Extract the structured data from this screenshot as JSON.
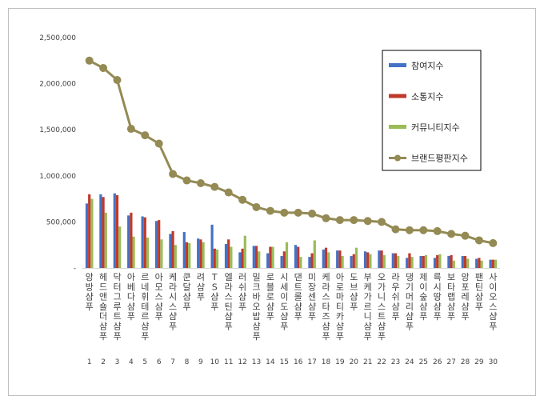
{
  "chart_data": {
    "type": "bar",
    "title": "",
    "xlabel": "",
    "ylabel": "",
    "ylim": [
      0,
      2500000
    ],
    "yticks": [
      "2,500,000",
      "2,000,000",
      "1,500,000",
      "1,000,000",
      "500,000",
      "-"
    ],
    "grid": false,
    "legend_position": "top-right",
    "ranks": [
      "1",
      "2",
      "3",
      "4",
      "5",
      "6",
      "7",
      "8",
      "9",
      "10",
      "11",
      "12",
      "13",
      "14",
      "15",
      "16",
      "17",
      "18",
      "19",
      "20",
      "21",
      "22",
      "23",
      "24",
      "25",
      "26",
      "27",
      "28",
      "29",
      "30"
    ],
    "categories": [
      "앙방샴푸",
      "헤드앤숄더샴푸",
      "닥터그루트샴푸",
      "아베다샴푸",
      "르네휘테르샴푸",
      "아모스샴푸",
      "케라시스샴푸",
      "쿤달샴푸",
      "려샴푸",
      "TS샴푸",
      "엘라스틴샴푸",
      "러쉬샴푸",
      "밀크바오밥샴푸",
      "로블로샴푸",
      "시세이도샴푸",
      "댄트롤샴푸",
      "미장센샴푸",
      "케라스타즈샴푸",
      "아로마티카샴푸",
      "도브샴푸",
      "부케가르니샴푸",
      "오가니스트샴푸",
      "라우쉬샴푸",
      "댕기머리샴푸",
      "제이숲샴푸",
      "륵시땅샴푸",
      "보타랩샴푸",
      "앙포레샴푸",
      "팬틴샴푸",
      "사이오스샴푸"
    ],
    "series": [
      {
        "name": "참여지수",
        "type": "bar",
        "color": "#4472c4",
        "values": [
          700000,
          800000,
          810000,
          570000,
          560000,
          510000,
          370000,
          390000,
          320000,
          470000,
          260000,
          170000,
          240000,
          160000,
          130000,
          250000,
          120000,
          200000,
          190000,
          130000,
          180000,
          190000,
          160000,
          110000,
          130000,
          110000,
          130000,
          130000,
          100000,
          90000
        ]
      },
      {
        "name": "소통지수",
        "type": "bar",
        "color": "#c0392b",
        "values": [
          800000,
          770000,
          790000,
          600000,
          550000,
          520000,
          400000,
          280000,
          310000,
          210000,
          310000,
          210000,
          240000,
          230000,
          180000,
          230000,
          160000,
          220000,
          190000,
          150000,
          170000,
          190000,
          160000,
          160000,
          130000,
          140000,
          140000,
          130000,
          110000,
          90000
        ]
      },
      {
        "name": "커뮤니티지수",
        "type": "bar",
        "color": "#9bbb59",
        "values": [
          750000,
          600000,
          450000,
          340000,
          330000,
          310000,
          250000,
          270000,
          280000,
          200000,
          230000,
          350000,
          180000,
          230000,
          280000,
          120000,
          300000,
          170000,
          130000,
          220000,
          150000,
          140000,
          130000,
          120000,
          140000,
          150000,
          80000,
          100000,
          80000,
          90000
        ]
      },
      {
        "name": "브랜드평판지수",
        "type": "line",
        "color": "#948a54",
        "values": [
          2250000,
          2170000,
          2040000,
          1510000,
          1440000,
          1350000,
          1020000,
          950000,
          920000,
          880000,
          820000,
          740000,
          660000,
          620000,
          600000,
          600000,
          590000,
          540000,
          520000,
          520000,
          510000,
          500000,
          420000,
          410000,
          410000,
          400000,
          370000,
          350000,
          300000,
          270000
        ]
      }
    ]
  }
}
